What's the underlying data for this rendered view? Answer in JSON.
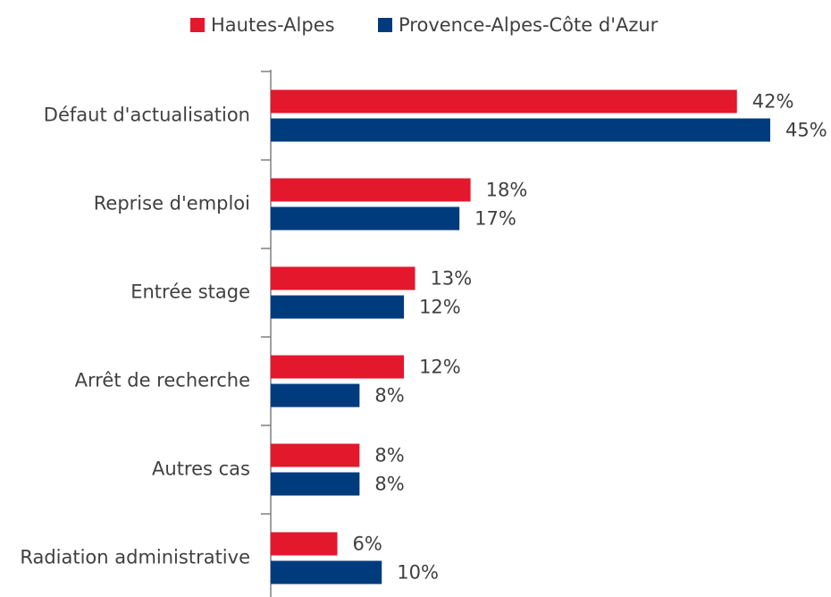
{
  "chart_data": {
    "type": "barh",
    "categories": [
      "Défaut d'actualisation",
      "Reprise d'emploi",
      "Entrée stage",
      "Arrêt de recherche",
      "Autres cas",
      "Radiation administrative"
    ],
    "series": [
      {
        "name": "Hautes-Alpes",
        "color": "#e3182d",
        "values": [
          42,
          18,
          13,
          12,
          8,
          6
        ],
        "value_labels": [
          "42%",
          "18%",
          "13%",
          "12%",
          "8%",
          "6%"
        ]
      },
      {
        "name": "Provence-Alpes-Côte d'Azur",
        "color": "#003b7e",
        "values": [
          45,
          17,
          12,
          8,
          8,
          10
        ],
        "value_labels": [
          "45%",
          "17%",
          "12%",
          "8%",
          "8%",
          "10%"
        ]
      }
    ],
    "legend": "top"
  }
}
